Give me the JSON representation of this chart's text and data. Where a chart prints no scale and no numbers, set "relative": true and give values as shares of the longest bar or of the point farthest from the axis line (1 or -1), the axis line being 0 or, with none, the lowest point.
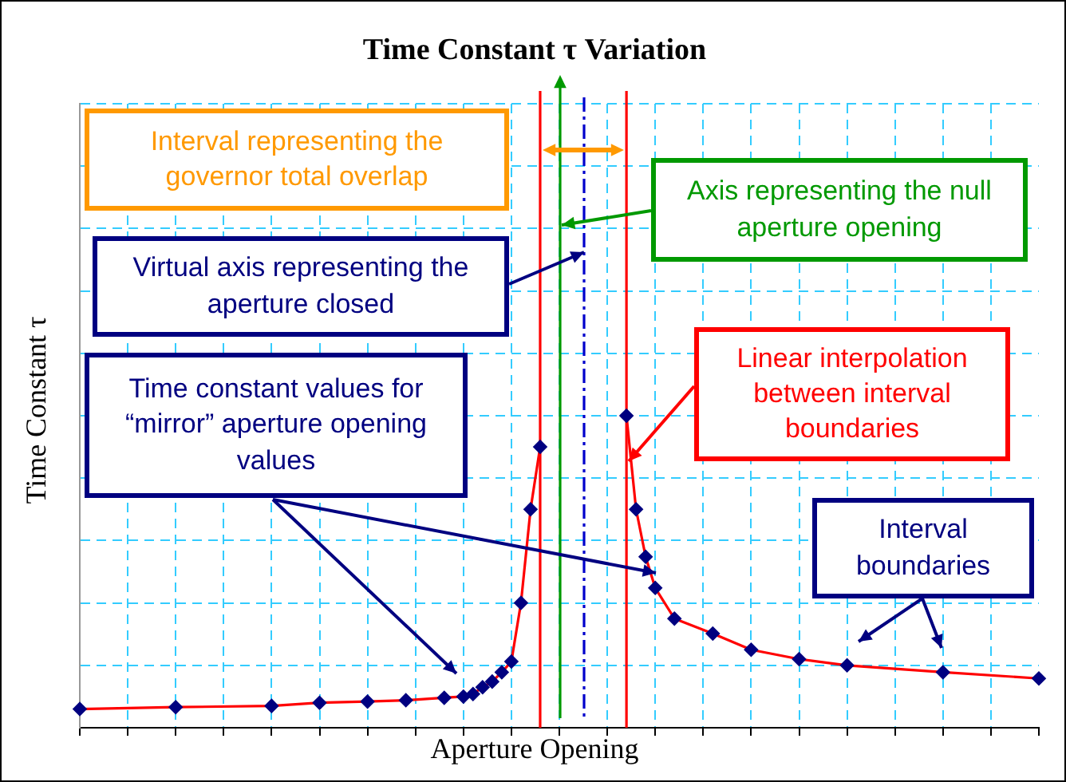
{
  "chart_data": {
    "type": "line",
    "title": "Time Constant τ Variation",
    "xlabel": "Aperture Opening",
    "ylabel": "Time Constant τ",
    "relative": true,
    "grid": true,
    "legend": false,
    "marker": "diamond",
    "line_style": "solid",
    "categories": [
      null,
      null,
      null,
      null,
      null,
      null,
      null,
      null,
      null,
      null,
      null,
      null,
      null,
      null,
      null,
      null,
      null,
      null,
      null,
      null,
      null,
      null,
      null,
      null,
      null,
      null,
      null,
      null,
      null,
      null,
      null,
      null,
      null,
      null,
      null,
      null,
      null,
      null,
      null,
      null,
      null,
      null,
      null,
      null,
      null,
      null,
      null,
      null,
      null,
      null,
      null,
      null,
      null,
      null,
      null,
      null,
      null,
      null,
      null,
      null,
      null,
      null,
      null,
      null,
      null,
      null,
      null,
      null,
      null,
      null,
      null,
      null,
      null,
      null,
      null,
      null,
      null,
      null,
      null,
      null,
      null,
      null,
      null,
      null,
      null,
      null,
      null,
      null,
      null,
      null,
      null,
      null,
      null,
      null,
      null,
      null,
      null,
      null,
      null,
      null,
      null
    ],
    "series": [
      {
        "color": "#ff0000",
        "values": [
          0.06,
          null,
          null,
          null,
          null,
          null,
          null,
          null,
          null,
          null,
          0.066,
          null,
          null,
          null,
          null,
          null,
          null,
          null,
          null,
          null,
          0.07,
          null,
          null,
          null,
          null,
          0.08,
          null,
          null,
          null,
          null,
          0.084,
          null,
          null,
          null,
          0.088,
          null,
          null,
          null,
          0.096,
          null,
          0.1,
          0.108,
          0.13,
          0.148,
          0.178,
          0.212,
          0.4,
          0.7,
          0.9,
          null,
          null,
          null,
          null,
          null,
          null,
          null,
          null,
          null,
          null,
          null,
          null,
          null,
          null,
          null,
          null,
          null,
          null,
          null,
          null,
          null,
          null,
          null,
          null,
          null,
          null,
          null,
          null,
          null,
          null,
          null,
          null,
          null,
          null,
          null,
          null,
          null,
          null,
          null,
          null,
          null,
          null,
          null,
          null,
          null,
          null,
          null,
          null,
          null,
          null,
          null,
          null
        ]
      },
      {
        "color": "#ff0000",
        "values": [
          null,
          null,
          null,
          null,
          null,
          null,
          null,
          null,
          null,
          null,
          null,
          null,
          null,
          null,
          null,
          null,
          null,
          null,
          null,
          null,
          null,
          null,
          null,
          null,
          null,
          null,
          null,
          null,
          null,
          null,
          null,
          null,
          null,
          null,
          null,
          null,
          null,
          null,
          null,
          null,
          null,
          null,
          null,
          null,
          null,
          null,
          null,
          null,
          null,
          null,
          null,
          null,
          null,
          null,
          null,
          null,
          null,
          1,
          0.7,
          0.548,
          0.448,
          null,
          0.35,
          null,
          null,
          null,
          0.302,
          null,
          null,
          null,
          0.25,
          null,
          null,
          null,
          null,
          0.22,
          null,
          null,
          null,
          null,
          0.2,
          null,
          null,
          null,
          null,
          null,
          null,
          null,
          null,
          null,
          0.178,
          null,
          null,
          null,
          null,
          null,
          null,
          null,
          null,
          null,
          0.158
        ]
      }
    ],
    "annotations": [
      "Interval representing the governor total overlap",
      "Virtual axis representing the aperture closed",
      "Time constant values for “mirror” aperture opening values",
      "Axis representing the null aperture opening",
      "Linear interpolation between interval boundaries",
      "Interval boundaries"
    ]
  }
}
